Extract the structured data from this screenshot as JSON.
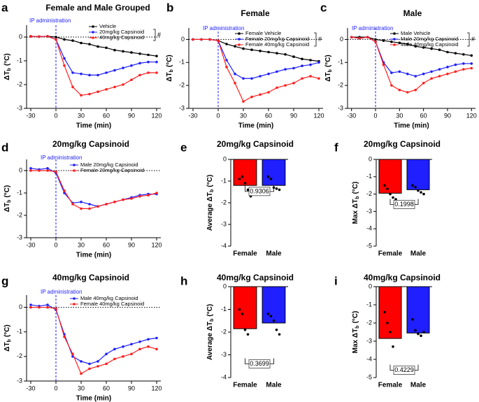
{
  "chart_data": [
    {
      "type": "line",
      "panel_label": "a",
      "title": "Female and Male Grouped",
      "annotation": "IP administration",
      "mark": "#",
      "xlabel": "Time (min)",
      "ylabel": [
        "ΔT",
        "b",
        "(°C)"
      ],
      "x": [
        -30,
        -20,
        -10,
        0,
        10,
        20,
        30,
        40,
        50,
        60,
        70,
        80,
        90,
        100,
        110,
        120
      ],
      "xlim": [
        -35,
        125
      ],
      "xticks": [
        -30,
        0,
        30,
        60,
        90,
        120
      ],
      "ylim": [
        -3,
        0.5
      ],
      "yticks": [
        -3,
        -2,
        -1,
        0
      ],
      "vline": 0,
      "hline": 0,
      "series": [
        {
          "name": "Vehicle",
          "color": "#000000",
          "values": [
            0.03,
            0.02,
            0.03,
            0,
            -0.1,
            -0.15,
            -0.25,
            -0.3,
            -0.4,
            -0.45,
            -0.55,
            -0.6,
            -0.65,
            -0.7,
            -0.75,
            -0.8
          ]
        },
        {
          "name": "20mg/kg Capsinoid",
          "color": "#1f1fff",
          "values": [
            0.03,
            0.02,
            0.03,
            -0.1,
            -0.9,
            -1.5,
            -1.55,
            -1.6,
            -1.6,
            -1.5,
            -1.4,
            -1.3,
            -1.2,
            -1.1,
            -1.05,
            -1.05
          ]
        },
        {
          "name": "40mg/kg Capsinoid",
          "color": "#ff1f1f",
          "values": [
            0.03,
            0.02,
            0.03,
            -0.1,
            -1.2,
            -2.1,
            -2.45,
            -2.4,
            -2.3,
            -2.2,
            -2.1,
            -2.0,
            -1.8,
            -1.6,
            -1.5,
            -1.5
          ]
        }
      ]
    },
    {
      "type": "line",
      "panel_label": "b",
      "title": "Female",
      "annotation": "IP administration",
      "mark": "#",
      "xlabel": "Time (min)",
      "ylabel": [
        "ΔT",
        "b",
        "(°C)"
      ],
      "x": [
        -30,
        -20,
        -10,
        0,
        10,
        20,
        30,
        40,
        50,
        60,
        70,
        80,
        90,
        100,
        110,
        120
      ],
      "xlim": [
        -35,
        125
      ],
      "xticks": [
        -30,
        0,
        30,
        60,
        90,
        120
      ],
      "ylim": [
        -3,
        0.5
      ],
      "yticks": [
        -3,
        -2,
        -1,
        0
      ],
      "vline": 0,
      "hline": 0,
      "series": [
        {
          "name": "Female Vehicle",
          "color": "#000000",
          "values": [
            0,
            0,
            0,
            -0.05,
            -0.2,
            -0.3,
            -0.4,
            -0.45,
            -0.5,
            -0.55,
            -0.6,
            -0.65,
            -0.75,
            -0.85,
            -0.9,
            -0.95
          ]
        },
        {
          "name": "Female 20mg/kg Capsinoid",
          "color": "#1f1fff",
          "values": [
            0,
            0,
            0,
            -0.05,
            -0.9,
            -1.5,
            -1.7,
            -1.7,
            -1.6,
            -1.5,
            -1.4,
            -1.3,
            -1.25,
            -1.15,
            -1.1,
            -1.0
          ]
        },
        {
          "name": "Female 40mg/kg Capsinoid",
          "color": "#ff1f1f",
          "values": [
            0,
            0,
            0,
            -0.05,
            -1.2,
            -1.9,
            -2.7,
            -2.5,
            -2.4,
            -2.3,
            -2.1,
            -2.0,
            -1.9,
            -1.7,
            -1.6,
            -1.7
          ]
        }
      ]
    },
    {
      "type": "line",
      "panel_label": "c",
      "title": "Male",
      "annotation": "IP administration",
      "mark": "#",
      "xlabel": "Time (min)",
      "ylabel": [
        "ΔT",
        "b",
        "(°C)"
      ],
      "x": [
        -30,
        -20,
        -10,
        0,
        10,
        20,
        30,
        40,
        50,
        60,
        70,
        80,
        90,
        100,
        110,
        120
      ],
      "xlim": [
        -35,
        125
      ],
      "xticks": [
        -30,
        0,
        30,
        60,
        90,
        120
      ],
      "ylim": [
        -3,
        0.5
      ],
      "yticks": [
        -3,
        -2,
        -1,
        0
      ],
      "vline": 0,
      "hline": 0,
      "series": [
        {
          "name": "Male Vehicle",
          "color": "#000000",
          "values": [
            0.1,
            0.1,
            0.1,
            0,
            -0.05,
            -0.1,
            -0.15,
            -0.2,
            -0.3,
            -0.35,
            -0.4,
            -0.45,
            -0.55,
            -0.6,
            -0.65,
            -0.7
          ]
        },
        {
          "name": "Male 20mg/kg Capsinoid",
          "color": "#1f1fff",
          "values": [
            0.1,
            0.05,
            0.1,
            -0.1,
            -1.0,
            -1.45,
            -1.4,
            -1.5,
            -1.6,
            -1.5,
            -1.4,
            -1.3,
            -1.2,
            -1.1,
            -1.05,
            -1.05
          ]
        },
        {
          "name": "Male 40mg/kg Capsinoid",
          "color": "#ff1f1f",
          "values": [
            0.1,
            0.05,
            0.1,
            -0.1,
            -1.1,
            -2.0,
            -2.2,
            -2.3,
            -2.2,
            -1.9,
            -1.7,
            -1.6,
            -1.5,
            -1.4,
            -1.3,
            -1.25
          ]
        }
      ]
    },
    {
      "type": "line",
      "panel_label": "d",
      "title": "20mg/kg Capsinoid",
      "annotation": "IP administration",
      "xlabel": "Time (min)",
      "ylabel": [
        "ΔT",
        "b",
        "(°C)"
      ],
      "x": [
        -30,
        -20,
        -10,
        0,
        10,
        20,
        30,
        40,
        50,
        60,
        70,
        80,
        90,
        100,
        110,
        120
      ],
      "xlim": [
        -35,
        125
      ],
      "xticks": [
        -30,
        0,
        30,
        60,
        90,
        120
      ],
      "ylim": [
        -3,
        0.5
      ],
      "yticks": [
        -3,
        -2,
        -1,
        0
      ],
      "vline": 0,
      "hline": 0,
      "series": [
        {
          "name": "Male 20mg/kg Capsinoid",
          "color": "#1f1fff",
          "values": [
            0.1,
            0.05,
            0.1,
            -0.1,
            -1.0,
            -1.45,
            -1.4,
            -1.5,
            -1.6,
            -1.5,
            -1.4,
            -1.3,
            -1.2,
            -1.1,
            -1.05,
            -1.05
          ]
        },
        {
          "name": "Female 20mg/kg Capsinoid",
          "color": "#ff1f1f",
          "values": [
            0,
            0,
            0,
            -0.05,
            -0.9,
            -1.5,
            -1.7,
            -1.7,
            -1.6,
            -1.5,
            -1.4,
            -1.3,
            -1.25,
            -1.15,
            -1.1,
            -1.0
          ]
        }
      ]
    },
    {
      "type": "bar",
      "panel_label": "e",
      "title": "20mg/kg Capsinoid",
      "ylabel": [
        "Average ΔT",
        "b",
        "(°C)"
      ],
      "categories": [
        "Female",
        "Male"
      ],
      "values": [
        -1.2,
        -1.2
      ],
      "colors": [
        "#ff0000",
        "#1f1fff"
      ],
      "points": [
        [
          -0.9,
          -0.8,
          -1.1,
          -1.4,
          -1.7
        ],
        [
          -0.8,
          -0.9,
          -1.3,
          -1.35,
          -1.4
        ]
      ],
      "ylim": [
        -4,
        0
      ],
      "yticks": [
        -4,
        -3,
        -2,
        -1,
        0
      ],
      "p_value": 0.9306
    },
    {
      "type": "bar",
      "panel_label": "f",
      "title": "20mg/kg Capsinoid",
      "ylabel": [
        "Max ΔT",
        "b",
        "(°C)"
      ],
      "categories": [
        "Female",
        "Male"
      ],
      "values": [
        -1.95,
        -1.75
      ],
      "colors": [
        "#ff0000",
        "#1f1fff"
      ],
      "points": [
        [
          -1.5,
          -1.7,
          -2.0,
          -2.2,
          -2.3
        ],
        [
          -1.5,
          -1.6,
          -1.8,
          -1.9,
          -2.0
        ]
      ],
      "ylim": [
        -5,
        0
      ],
      "yticks": [
        -5,
        -4,
        -3,
        -2,
        -1,
        0
      ],
      "p_value": 0.1998
    },
    {
      "type": "line",
      "panel_label": "g",
      "title": "40mg/kg Capsinoid",
      "annotation": "IP administration",
      "xlabel": "Time (min)",
      "ylabel": [
        "ΔT",
        "b",
        "(°C)"
      ],
      "x": [
        -30,
        -20,
        -10,
        0,
        10,
        20,
        30,
        40,
        50,
        60,
        70,
        80,
        90,
        100,
        110,
        120
      ],
      "xlim": [
        -35,
        125
      ],
      "xticks": [
        -30,
        0,
        30,
        60,
        90,
        120
      ],
      "ylim": [
        -3,
        0.5
      ],
      "yticks": [
        -3,
        -2,
        -1,
        0
      ],
      "vline": 0,
      "hline": 0,
      "series": [
        {
          "name": "Male 40mg/kg Capsinoid",
          "color": "#1f1fff",
          "values": [
            0.1,
            0.05,
            0.1,
            -0.1,
            -1.1,
            -2.0,
            -2.2,
            -2.3,
            -2.2,
            -1.9,
            -1.7,
            -1.6,
            -1.5,
            -1.4,
            -1.3,
            -1.25
          ]
        },
        {
          "name": "Female 40mg/kg Capsinoid",
          "color": "#ff1f1f",
          "values": [
            0,
            0,
            0,
            -0.05,
            -1.2,
            -1.9,
            -2.7,
            -2.5,
            -2.4,
            -2.3,
            -2.1,
            -2.0,
            -1.9,
            -1.7,
            -1.6,
            -1.7
          ]
        }
      ]
    },
    {
      "type": "bar",
      "panel_label": "h",
      "title": "40mg/kg Capsinoid",
      "ylabel": [
        "Average ΔT",
        "b",
        "(°C)"
      ],
      "categories": [
        "Female",
        "Male"
      ],
      "values": [
        -1.85,
        -1.6
      ],
      "colors": [
        "#ff0000",
        "#1f1fff"
      ],
      "points": [
        [
          -1.0,
          -1.2,
          -1.9,
          -2.1,
          -3.5
        ],
        [
          -1.2,
          -1.3,
          -1.5,
          -1.9,
          -2.1
        ]
      ],
      "ylim": [
        -4,
        0
      ],
      "yticks": [
        -4,
        -3,
        -2,
        -1,
        0
      ],
      "p_value": 0.3699
    },
    {
      "type": "bar",
      "panel_label": "i",
      "title": "40mg/kg Capsinoid",
      "ylabel": [
        "Max ΔT",
        "b",
        "(°C)"
      ],
      "categories": [
        "Female",
        "Male"
      ],
      "values": [
        -2.85,
        -2.55
      ],
      "colors": [
        "#ff0000",
        "#1f1fff"
      ],
      "points": [
        [
          -1.4,
          -2.0,
          -2.5,
          -3.3,
          -4.6
        ],
        [
          -1.8,
          -2.4,
          -2.6,
          -2.7,
          -2.5
        ]
      ],
      "ylim": [
        -5,
        0
      ],
      "yticks": [
        -5,
        -4,
        -3,
        -2,
        -1,
        0
      ],
      "p_value": 0.4229
    }
  ]
}
